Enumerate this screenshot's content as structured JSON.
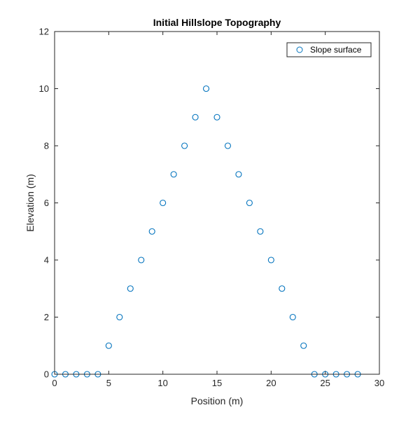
{
  "chart_data": {
    "type": "scatter",
    "title": "Initial Hillslope Topography",
    "xlabel": "Position (m)",
    "ylabel": "Elevation (m)",
    "xlim": [
      0,
      30
    ],
    "ylim": [
      0,
      12
    ],
    "xticks": [
      0,
      5,
      10,
      15,
      20,
      25,
      30
    ],
    "yticks": [
      0,
      2,
      4,
      6,
      8,
      10,
      12
    ],
    "grid": false,
    "legend_position": "top-right",
    "series": [
      {
        "name": "Slope surface",
        "marker": "circle-open",
        "color": "#0072BD",
        "x": [
          0,
          1,
          2,
          3,
          4,
          5,
          6,
          7,
          8,
          9,
          10,
          11,
          12,
          13,
          14,
          15,
          16,
          17,
          18,
          19,
          20,
          21,
          22,
          23,
          24,
          25,
          26,
          27,
          28
        ],
        "y": [
          0,
          0,
          0,
          0,
          0,
          1,
          2,
          3,
          4,
          5,
          6,
          7,
          8,
          9,
          10,
          9,
          8,
          7,
          6,
          5,
          4,
          3,
          2,
          1,
          0,
          0,
          0,
          0,
          0
        ]
      }
    ]
  }
}
